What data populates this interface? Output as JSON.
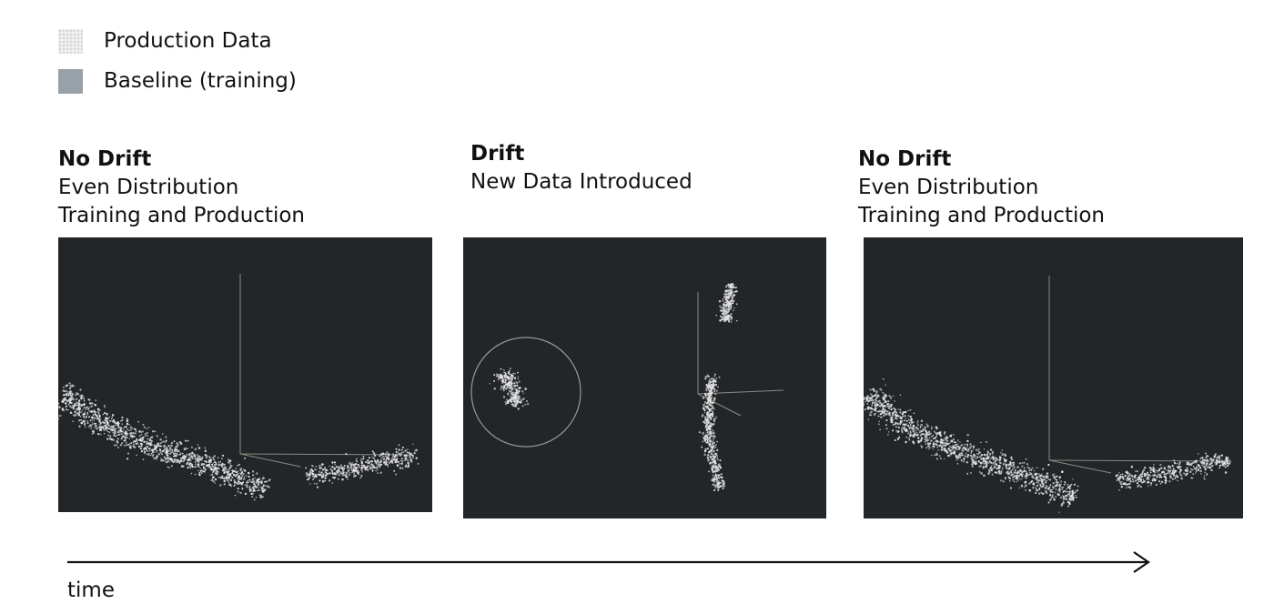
{
  "legend": {
    "items": [
      {
        "label": "Production Data",
        "swatch": "production-swatch",
        "color": "#eeeeee"
      },
      {
        "label": "Baseline (training)",
        "swatch": "baseline-swatch",
        "color": "#98a1a8"
      }
    ]
  },
  "panels": [
    {
      "title": "No Drift",
      "line1": "Even Distribution",
      "line2": "Training and Production"
    },
    {
      "title": "Drift",
      "line1": "New Data Introduced",
      "line2": ""
    },
    {
      "title": "No Drift",
      "line1": "Even Distribution",
      "line2": "Training and Production"
    }
  ],
  "timeline": {
    "label": "time"
  },
  "colors": {
    "panel_background": "#232629",
    "points": "#e6e6e6",
    "axes": "#8a8a80",
    "highlight_circle": "#9a9a8e"
  }
}
